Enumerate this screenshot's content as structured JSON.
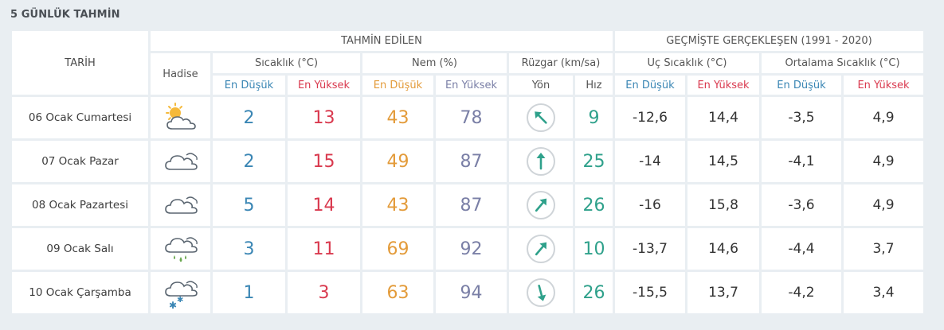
{
  "title": "5 GÜNLÜK TAHMİN",
  "headers": {
    "tarih": "TARİH",
    "forecast": "TAHMİN EDİLEN",
    "history": "GEÇMİŞTE GERÇEKLEŞEN (1991 - 2020)",
    "hadise": "Hadise",
    "sicaklik": "Sıcaklık (°C)",
    "nem": "Nem (%)",
    "ruzgar": "Rüzgar (km/sa)",
    "uc_sicaklik": "Uç Sıcaklık (°C)",
    "ort_sicaklik": "Ortalama Sıcaklık (°C)",
    "en_dusuk": "En Düşük",
    "en_yuksek": "En Yüksek",
    "yon": "Yön",
    "hiz": "Hız"
  },
  "colors": {
    "low": "#3a86b4",
    "high": "#d9394e",
    "hum_low": "#e39b3a",
    "hum_high": "#7a7fa6",
    "wind": "#2fa18b"
  },
  "rows": [
    {
      "date": "06 Ocak Cumartesi",
      "icon": "partly-cloudy-icon",
      "tmin": "2",
      "tmax": "13",
      "hmin": "43",
      "hmax": "78",
      "dir_deg": -45,
      "speed": "9",
      "uc_min": "-12,6",
      "uc_max": "14,4",
      "ort_min": "-3,5",
      "ort_max": "4,9"
    },
    {
      "date": "07 Ocak Pazar",
      "icon": "cloudy-icon",
      "tmin": "2",
      "tmax": "15",
      "hmin": "49",
      "hmax": "87",
      "dir_deg": 0,
      "speed": "25",
      "uc_min": "-14",
      "uc_max": "14,5",
      "ort_min": "-4,1",
      "ort_max": "4,9"
    },
    {
      "date": "08 Ocak Pazartesi",
      "icon": "cloudy-icon",
      "tmin": "5",
      "tmax": "14",
      "hmin": "43",
      "hmax": "87",
      "dir_deg": 40,
      "speed": "26",
      "uc_min": "-16",
      "uc_max": "15,8",
      "ort_min": "-3,6",
      "ort_max": "4,9"
    },
    {
      "date": "09 Ocak Salı",
      "icon": "rain-cloud-icon",
      "tmin": "3",
      "tmax": "11",
      "hmin": "69",
      "hmax": "92",
      "dir_deg": 40,
      "speed": "10",
      "uc_min": "-13,7",
      "uc_max": "14,6",
      "ort_min": "-4,4",
      "ort_max": "3,7"
    },
    {
      "date": "10 Ocak Çarşamba",
      "icon": "snow-cloud-icon",
      "tmin": "1",
      "tmax": "3",
      "hmin": "63",
      "hmax": "94",
      "dir_deg": 165,
      "speed": "26",
      "uc_min": "-15,5",
      "uc_max": "13,7",
      "ort_min": "-4,2",
      "ort_max": "3,4"
    }
  ]
}
